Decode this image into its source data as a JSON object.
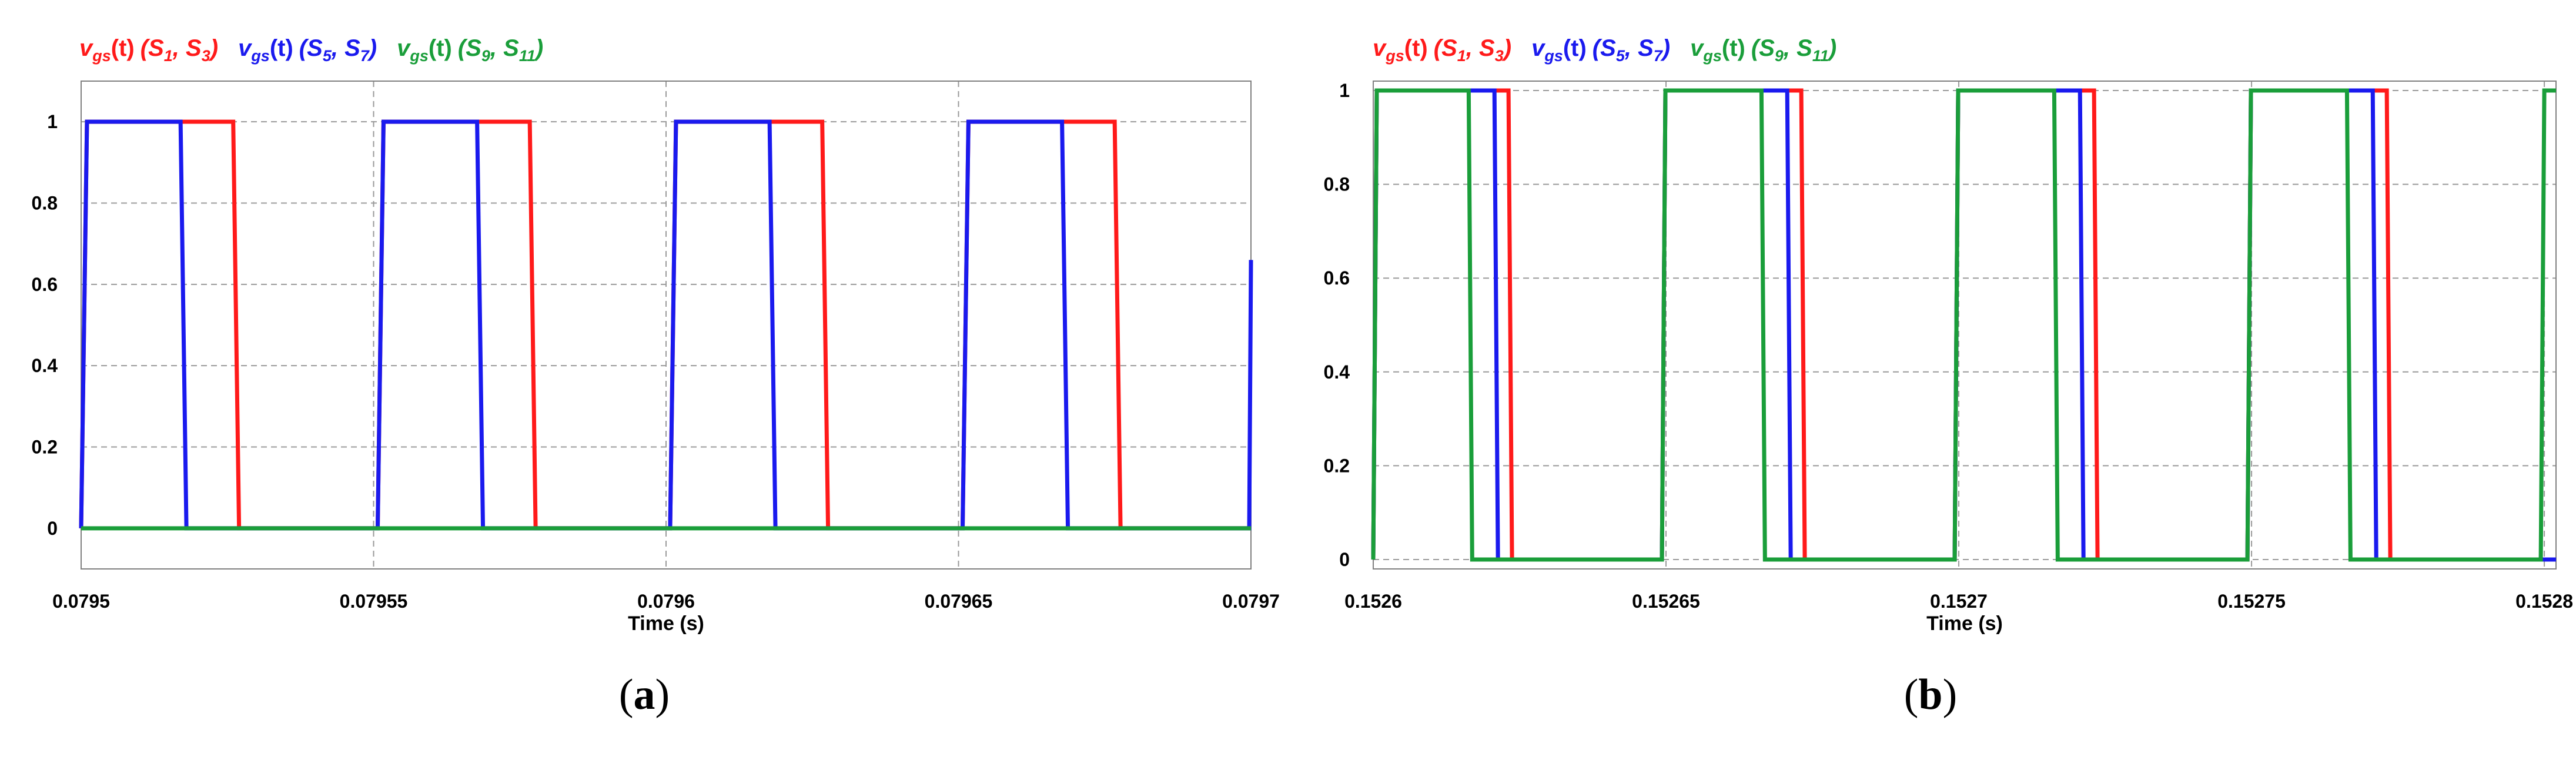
{
  "colors": {
    "red": "#ff1a1a",
    "blue": "#1a1aee",
    "green": "#1a9e3a",
    "grid": "#9a9a9a",
    "frame": "#808080"
  },
  "legend_entries": [
    {
      "v": "v",
      "sub": "gs",
      "t": "(t)",
      "s1": "S",
      "s1sub": "1",
      "s2": "S",
      "s2sub": "3",
      "color": "red"
    },
    {
      "v": "v",
      "sub": "gs",
      "t": "(t)",
      "s1": "S",
      "s1sub": "5",
      "s2": "S",
      "s2sub": "7",
      "color": "blue"
    },
    {
      "v": "v",
      "sub": "gs",
      "t": "(t)",
      "s1": "S",
      "s1sub": "9",
      "s2": "S",
      "s2sub": "11",
      "color": "green"
    }
  ],
  "chart_data": [
    {
      "panel": "a",
      "type": "line",
      "caption": "a",
      "xlabel": "Time (s)",
      "ylabel": "",
      "xlim": [
        0.0795,
        0.0797
      ],
      "ylim": [
        -0.1,
        1.1
      ],
      "xticks": [
        0.0795,
        0.07955,
        0.0796,
        0.07965,
        0.0797
      ],
      "xtick_labels": [
        "0.0795",
        "0.07955",
        "0.0796",
        "0.07965",
        "0.0797"
      ],
      "yticks": [
        0,
        0.2,
        0.4,
        0.6,
        0.8,
        1
      ],
      "ytick_labels": [
        "0",
        "0.2",
        "0.4",
        "0.6",
        "0.8",
        "1"
      ],
      "grid": true,
      "legend_position": "top-left",
      "series": [
        {
          "legend_index": 0,
          "color": "red",
          "x": [
            0.0795,
            0.079501,
            0.079526,
            0.079527,
            0.0795507,
            0.0795517,
            0.0795767,
            0.0795777,
            0.0796007,
            0.0796017,
            0.0796267,
            0.0796277,
            0.0796507,
            0.0796517,
            0.0796767,
            0.0796777,
            0.0797
          ],
          "y": [
            0,
            1,
            1,
            0,
            0,
            1,
            1,
            0,
            0,
            1,
            1,
            0,
            0,
            1,
            1,
            0,
            0
          ]
        },
        {
          "legend_index": 1,
          "color": "blue",
          "x": [
            0.0795,
            0.079501,
            0.079517,
            0.079518,
            0.0795507,
            0.0795517,
            0.0795677,
            0.0795687,
            0.0796007,
            0.0796017,
            0.0796177,
            0.0796187,
            0.0796507,
            0.0796517,
            0.0796677,
            0.0796687,
            0.0796997,
            0.0797
          ],
          "y": [
            0,
            1,
            1,
            0,
            0,
            1,
            1,
            0,
            0,
            1,
            1,
            0,
            0,
            1,
            1,
            0,
            0,
            0.66
          ]
        },
        {
          "legend_index": 2,
          "color": "green",
          "x": [
            0.0795,
            0.0797
          ],
          "y": [
            0,
            0
          ]
        }
      ]
    },
    {
      "panel": "b",
      "type": "line",
      "caption": "b",
      "xlabel": "Time (s)",
      "ylabel": "",
      "xlim": [
        0.1526,
        0.152802
      ],
      "ylim": [
        -0.02,
        1.02
      ],
      "xticks": [
        0.1526,
        0.15265,
        0.1527,
        0.15275,
        0.1528
      ],
      "xtick_labels": [
        "0.1526",
        "0.15265",
        "0.1527",
        "0.15275",
        "0.1528"
      ],
      "yticks": [
        0,
        0.2,
        0.4,
        0.6,
        0.8,
        1
      ],
      "ytick_labels": [
        "0",
        "0.2",
        "0.4",
        "0.6",
        "0.8",
        "1"
      ],
      "grid": true,
      "legend_position": "top-left",
      "series": [
        {
          "legend_index": 0,
          "color": "red",
          "x": [
            0.1526,
            0.1526006,
            0.1526231,
            0.1526237,
            0.1526493,
            0.1526499,
            0.1526731,
            0.1526737,
            0.1526993,
            0.1526999,
            0.1527231,
            0.1527237,
            0.1527493,
            0.1527499,
            0.1527731,
            0.1527737,
            0.152802
          ],
          "y": [
            0,
            1,
            1,
            0,
            0,
            1,
            1,
            0,
            0,
            1,
            1,
            0,
            0,
            1,
            1,
            0,
            0
          ]
        },
        {
          "legend_index": 1,
          "color": "blue",
          "x": [
            0.1526,
            0.1526006,
            0.1526207,
            0.1526213,
            0.1526493,
            0.1526499,
            0.1526707,
            0.1526713,
            0.1526993,
            0.1526999,
            0.1527207,
            0.1527213,
            0.1527493,
            0.1527499,
            0.1527707,
            0.1527713,
            0.152802
          ],
          "y": [
            0,
            1,
            1,
            0,
            0,
            1,
            1,
            0,
            0,
            1,
            1,
            0,
            0,
            1,
            1,
            0,
            0
          ]
        },
        {
          "legend_index": 2,
          "color": "green",
          "x": [
            0.1526,
            0.1526006,
            0.1526163,
            0.1526169,
            0.1526493,
            0.1526499,
            0.1526663,
            0.1526669,
            0.1526993,
            0.1526999,
            0.1527163,
            0.1527169,
            0.1527493,
            0.1527499,
            0.1527663,
            0.1527669,
            0.1527994,
            0.1528,
            0.152802
          ],
          "y": [
            0,
            1,
            1,
            0,
            0,
            1,
            1,
            0,
            0,
            1,
            1,
            0,
            0,
            1,
            1,
            0,
            0,
            1,
            1
          ]
        }
      ]
    }
  ]
}
